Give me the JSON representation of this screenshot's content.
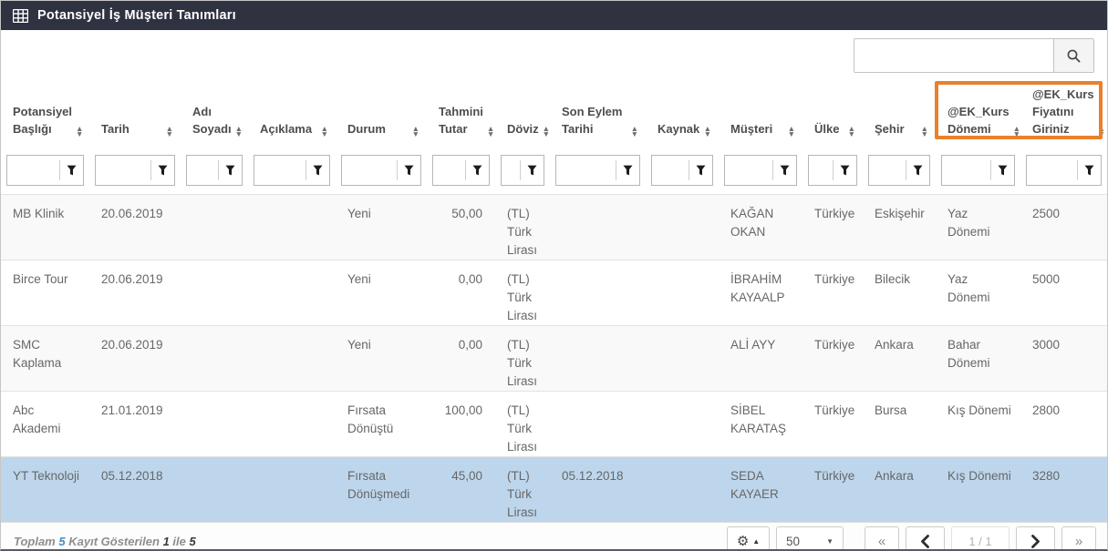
{
  "titlebar": {
    "title": "Potansiyel İş Müşteri Tanımları",
    "icon": "table-grid-icon"
  },
  "search": {
    "value": "",
    "icon": "search-icon"
  },
  "table": {
    "columns": [
      {
        "key": "potansiyel-basligi",
        "label": "Potansiyel Başlığı"
      },
      {
        "key": "tarih",
        "label": "Tarih"
      },
      {
        "key": "adi-soyadi",
        "label": "Adı Soyadı"
      },
      {
        "key": "aciklama",
        "label": "Açıklama"
      },
      {
        "key": "durum",
        "label": "Durum"
      },
      {
        "key": "tahmini-tutar",
        "label": "Tahmini Tutar"
      },
      {
        "key": "doviz",
        "label": "Döviz"
      },
      {
        "key": "son-eylem-tarihi",
        "label": "Son Eylem Tarihi"
      },
      {
        "key": "kaynak",
        "label": "Kaynak"
      },
      {
        "key": "musteri",
        "label": "Müşteri"
      },
      {
        "key": "ulke",
        "label": "Ülke"
      },
      {
        "key": "sehir",
        "label": "Şehir"
      },
      {
        "key": "ek-kurs-donemi",
        "label": "@EK_Kurs Dönemi",
        "highlighted": true
      },
      {
        "key": "ek-kurs-fiyatini-giriniz",
        "label": "@EK_Kurs Fiyatını Giriniz",
        "highlighted": true
      }
    ],
    "sort_icon": "sort-arrows-icon",
    "filter_icon": "funnel-icon",
    "rows": [
      {
        "selected": false,
        "cells": [
          "MB Klinik",
          "20.06.2019",
          "",
          "",
          "Yeni",
          "50,00",
          "(TL) Türk Lirası",
          "",
          "",
          "KAĞAN OKAN",
          "Türkiye",
          "Eskişehir",
          "Yaz Dönemi",
          "2500"
        ]
      },
      {
        "selected": false,
        "cells": [
          "Birce Tour",
          "20.06.2019",
          "",
          "",
          "Yeni",
          "0,00",
          "(TL) Türk Lirası",
          "",
          "",
          "İBRAHİM KAYAALP",
          "Türkiye",
          "Bilecik",
          "Yaz Dönemi",
          "5000"
        ]
      },
      {
        "selected": false,
        "cells": [
          "SMC Kaplama",
          "20.06.2019",
          "",
          "",
          "Yeni",
          "0,00",
          "(TL) Türk Lirası",
          "",
          "",
          "ALİ AYY",
          "Türkiye",
          "Ankara",
          "Bahar Dönemi",
          "3000"
        ]
      },
      {
        "selected": false,
        "cells": [
          "Abc Akademi",
          "21.01.2019",
          "",
          "",
          "Fırsata Dönüştü",
          "100,00",
          "(TL) Türk Lirası",
          "",
          "",
          "SİBEL KARATAŞ",
          "Türkiye",
          "Bursa",
          "Kış Dönemi",
          "2800"
        ]
      },
      {
        "selected": true,
        "cells": [
          "YT Teknoloji",
          "05.12.2018",
          "",
          "",
          "Fırsata Dönüşmedi",
          "45,00",
          "(TL) Türk Lirası",
          "05.12.2018",
          "",
          "SEDA KAYAER",
          "Türkiye",
          "Ankara",
          "Kış Dönemi",
          "3280"
        ]
      }
    ]
  },
  "footer": {
    "summary": {
      "toplam_label": "Toplam",
      "total": "5",
      "shown_label": "Kayıt Gösterilen",
      "from": "1",
      "ile_label": "ile",
      "to": "5"
    },
    "settings_icon": "gear-icon",
    "page_size": "50",
    "pagination": {
      "first": "«",
      "prev_icon": "chevron-left-icon",
      "current": "1 / 1",
      "next_icon": "chevron-right-icon",
      "last": "»"
    }
  },
  "colors": {
    "titlebar_bg": "#2e3241",
    "selected_row_bg": "#bdd6ec",
    "odd_row_bg": "#f9f9f9",
    "annotation_orange": "#e8812d",
    "summary_count_blue": "#3f8fc8"
  }
}
